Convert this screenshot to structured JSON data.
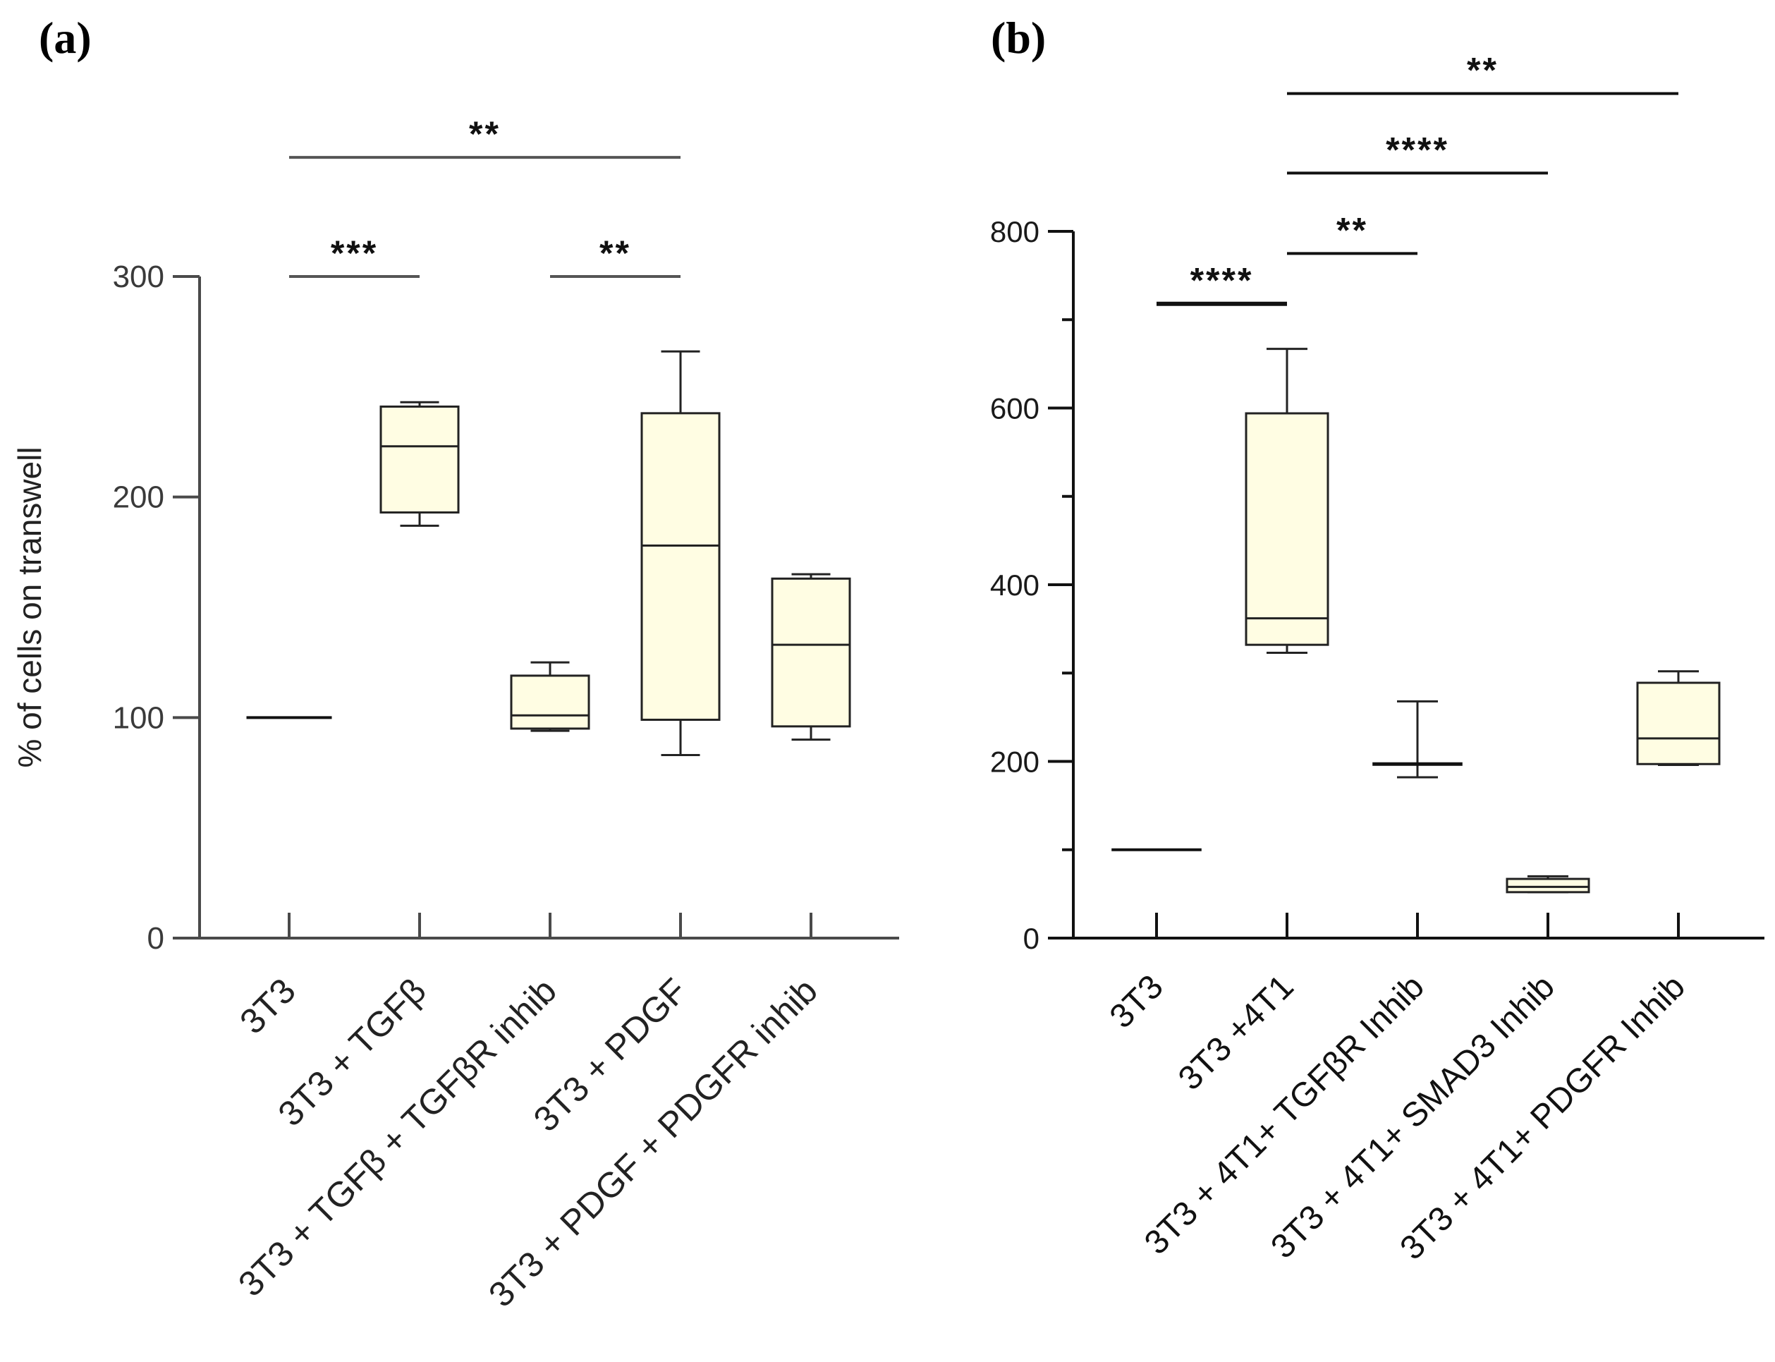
{
  "chart_data": [
    {
      "type": "box",
      "panel_label": "(a)",
      "title": "",
      "xlabel": "",
      "ylabel": "% of cells on transwell",
      "ylim": [
        0,
        300
      ],
      "yticks": [
        0,
        100,
        200,
        300
      ],
      "ytick_labels": [
        "0",
        "100",
        "200",
        "300"
      ],
      "box_fill": "#fffde3",
      "categories": [
        "3T3",
        "3T3 + TGFβ",
        "3T3 + TGFβ + TGFβR inhib",
        "3T3 + PDGF",
        "3T3 + PDGF + PDGFR inhib"
      ],
      "boxes": [
        {
          "min": 100,
          "q1": 100,
          "median": 100,
          "q3": 100,
          "max": 100
        },
        {
          "min": 187,
          "q1": 193,
          "median": 223,
          "q3": 241,
          "max": 243
        },
        {
          "min": 94,
          "q1": 95,
          "median": 101,
          "q3": 119,
          "max": 125
        },
        {
          "min": 83,
          "q1": 99,
          "median": 178,
          "q3": 238,
          "max": 266
        },
        {
          "min": 90,
          "q1": 96,
          "median": 133,
          "q3": 163,
          "max": 165
        }
      ],
      "significance": [
        {
          "from": 0,
          "to": 1,
          "label": "***",
          "value": 300
        },
        {
          "from": 2,
          "to": 3,
          "label": "**",
          "value": 300
        },
        {
          "from": 0,
          "to": 3,
          "label": "**",
          "value": 354
        }
      ]
    },
    {
      "type": "box",
      "panel_label": "(b)",
      "title": "",
      "xlabel": "",
      "ylabel": "",
      "ylim": [
        0,
        800
      ],
      "yticks": [
        0,
        200,
        400,
        600,
        800
      ],
      "ytick_labels": [
        "0",
        "200",
        "400",
        "600",
        "800"
      ],
      "minor_yticks": [
        100,
        300,
        500,
        700
      ],
      "box_fill": "#fffde3",
      "categories": [
        "3T3",
        "3T3 +4T1",
        "3T3 + 4T1+ TGFβR Inhib",
        "3T3 + 4T1+ SMAD3 Inhib",
        "3T3 + 4T1+ PDGFR Inhib"
      ],
      "boxes": [
        {
          "min": 100,
          "q1": 100,
          "median": 100,
          "q3": 100,
          "max": 100
        },
        {
          "min": 323,
          "q1": 332,
          "median": 362,
          "q3": 594,
          "max": 667
        },
        {
          "min": 182,
          "q1": 197,
          "median": 197,
          "q3": 197,
          "max": 268
        },
        {
          "min": 52,
          "q1": 52,
          "median": 58,
          "q3": 67,
          "max": 70
        },
        {
          "min": 196,
          "q1": 197,
          "median": 226,
          "q3": 289,
          "max": 302
        }
      ],
      "significance": [
        {
          "from": 0,
          "to": 1,
          "label": "****",
          "value": 718
        },
        {
          "from": 1,
          "to": 2,
          "label": "**",
          "value": 775
        },
        {
          "from": 1,
          "to": 3,
          "label": "****",
          "value": 866
        },
        {
          "from": 1,
          "to": 4,
          "label": "**",
          "value": 956
        }
      ]
    }
  ]
}
